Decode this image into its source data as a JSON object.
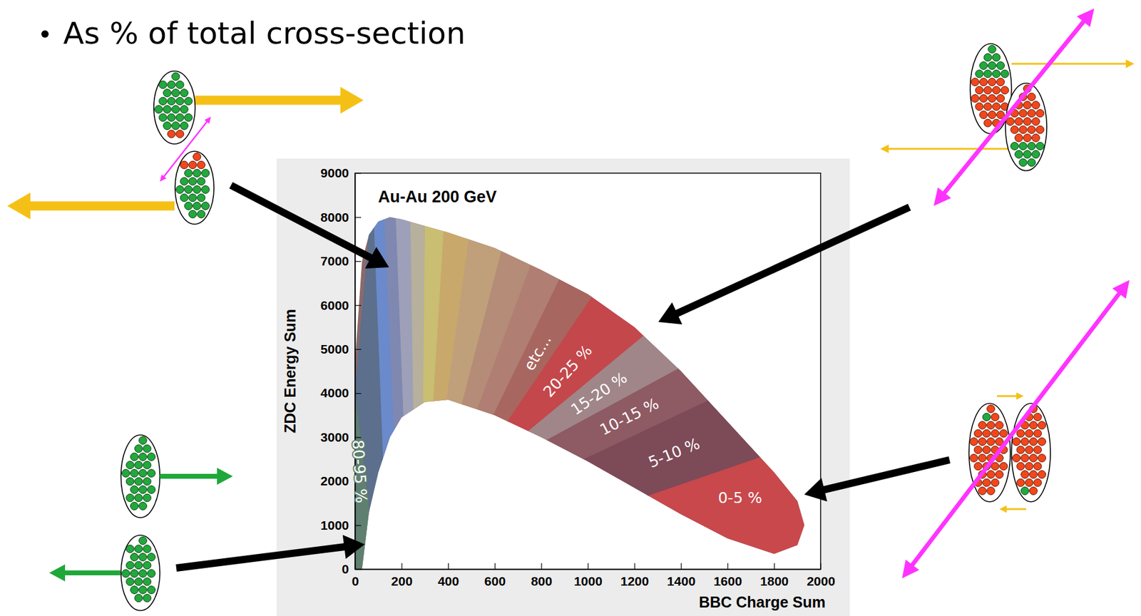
{
  "header": {
    "text": "As % of total cross-section"
  },
  "chart_data": {
    "type": "area",
    "title": "Au-Au 200 GeV",
    "x_label": "BBC Charge Sum",
    "y_label": "ZDC Energy Sum",
    "xlim": [
      0,
      2000
    ],
    "ylim": [
      0,
      9000
    ],
    "xticks": [
      0,
      200,
      400,
      600,
      800,
      1000,
      1200,
      1400,
      1600,
      1800,
      2000
    ],
    "yticks": [
      0,
      1000,
      2000,
      3000,
      4000,
      5000,
      6000,
      7000,
      8000,
      9000
    ],
    "grid": false,
    "band": {
      "x": [
        0,
        30,
        60,
        100,
        150,
        200,
        300,
        400,
        600,
        800,
        1000,
        1200,
        1400,
        1600,
        1800,
        1900,
        1930
      ],
      "upper": [
        4700,
        7000,
        7600,
        7900,
        8000,
        7950,
        7800,
        7650,
        7300,
        6800,
        6250,
        5500,
        4500,
        3350,
        2200,
        1550,
        1000
      ],
      "lower": [
        0,
        0,
        1300,
        2200,
        3000,
        3450,
        3800,
        3850,
        3500,
        3000,
        2450,
        1850,
        1250,
        700,
        350,
        550,
        1000
      ]
    },
    "boundaries": [
      {
        "x": [
          2000,
          2000
        ],
        "y": [
          0,
          4000
        ]
      },
      {
        "x": [
          975,
          1875
        ],
        "y": [
          1163,
          2797
        ]
      },
      {
        "x": [
          790,
          1633
        ],
        "y": [
          2027,
          4130
        ]
      },
      {
        "x": [
          700,
          1447
        ],
        "y": [
          2592,
          4733
        ]
      },
      {
        "x": [
          672,
          1265
        ],
        "y": [
          2833,
          5426
        ]
      },
      {
        "x": [
          603,
          1031
        ],
        "y": [
          2967,
          6306
        ]
      },
      {
        "x": [
          560,
          905
        ],
        "y": [
          3150,
          6900
        ]
      },
      {
        "x": [
          500,
          780
        ],
        "y": [
          3300,
          7300
        ]
      },
      {
        "x": [
          440,
          650
        ],
        "y": [
          3400,
          7700
        ]
      },
      {
        "x": [
          380,
          500
        ],
        "y": [
          3400,
          8000
        ]
      },
      {
        "x": [
          330,
          385
        ],
        "y": [
          3400,
          8200
        ]
      },
      {
        "x": [
          290,
          300
        ],
        "y": [
          3400,
          8300
        ]
      },
      {
        "x": [
          250,
          235
        ],
        "y": [
          3200,
          8400
        ]
      },
      {
        "x": [
          210,
          170
        ],
        "y": [
          3000,
          8500
        ]
      },
      {
        "x": [
          170,
          120
        ],
        "y": [
          2600,
          8500
        ]
      },
      {
        "x": [
          130,
          75
        ],
        "y": [
          1000,
          8500
        ]
      },
      {
        "x": [
          90,
          0
        ],
        "y": [
          0,
          4000
        ]
      },
      {
        "x": [
          0,
          0
        ],
        "y": [
          0,
          4000
        ]
      }
    ],
    "classes": [
      {
        "label": "0-5 %",
        "color": "#c8484c"
      },
      {
        "label": "5-10 %",
        "color": "#7d4a58"
      },
      {
        "label": "10-15 %",
        "color": "#8e5a63"
      },
      {
        "label": "15-20 %",
        "color": "#a08688"
      },
      {
        "label": "20-25 %",
        "color": "#c4474b"
      },
      {
        "label": "etc...",
        "color": "#a86660"
      },
      {
        "label": null,
        "color": "#b07e73"
      },
      {
        "label": null,
        "color": "#b48c78"
      },
      {
        "label": null,
        "color": "#bfa07a"
      },
      {
        "label": null,
        "color": "#c9a86c"
      },
      {
        "label": null,
        "color": "#c9be72"
      },
      {
        "label": null,
        "color": "#b6b09c"
      },
      {
        "label": null,
        "color": "#9da0b8"
      },
      {
        "label": null,
        "color": "#7f88b0"
      },
      {
        "label": null,
        "color": "#6a8acc"
      },
      {
        "label": null,
        "color": "#5c6f8c"
      },
      {
        "label": "80-95 %",
        "color": "#5f8070"
      }
    ]
  }
}
